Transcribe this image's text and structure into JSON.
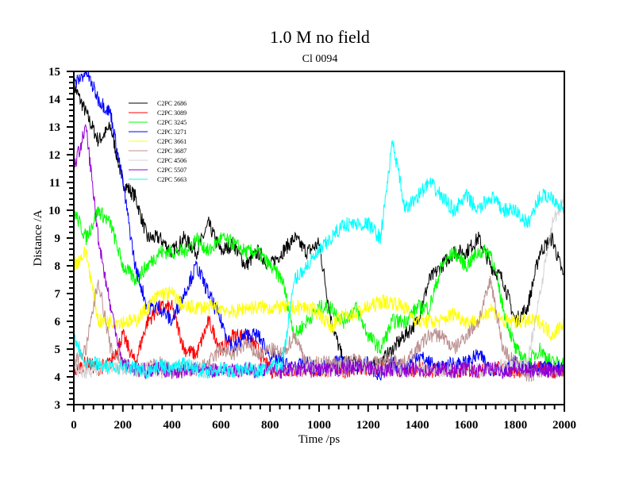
{
  "chart_data": {
    "type": "line",
    "title": "1.0 M no field",
    "subtitle": "Cl 0094",
    "xlabel": "Time /ps",
    "ylabel": "Distance /A",
    "xlim": [
      0,
      2000
    ],
    "ylim": [
      3,
      15
    ],
    "x_major_step": 200,
    "x_minor_step": 40,
    "y_major_step": 1,
    "y_minor_step": 0.2,
    "grid": false,
    "legend_position": "top-left",
    "x": [
      0,
      50,
      100,
      150,
      200,
      250,
      300,
      350,
      400,
      450,
      500,
      550,
      600,
      650,
      700,
      750,
      800,
      850,
      900,
      950,
      1000,
      1050,
      1100,
      1150,
      1200,
      1250,
      1300,
      1350,
      1400,
      1450,
      1500,
      1550,
      1600,
      1650,
      1700,
      1750,
      1800,
      1850,
      1900,
      1950,
      2000
    ],
    "series": [
      {
        "name": "C2PC 2686",
        "color": "#000000",
        "values": [
          14.5,
          13.5,
          12.5,
          13,
          11,
          10.5,
          9,
          9,
          8.5,
          9,
          8.5,
          9.5,
          8.5,
          8.8,
          8,
          8.5,
          8,
          8.5,
          9,
          8.5,
          8.8,
          6,
          4.5,
          4.5,
          4.3,
          4.5,
          5,
          5.5,
          6,
          7.5,
          8,
          8.5,
          8.5,
          9,
          8,
          7.5,
          6,
          6.5,
          8.5,
          9,
          7.5
        ]
      },
      {
        "name": "C2PC 3089",
        "color": "#ff0000",
        "values": [
          4.2,
          4.5,
          4.3,
          4.5,
          5.5,
          4.5,
          6,
          6.5,
          6.5,
          5,
          4.8,
          6,
          5,
          5.5,
          5.5,
          5,
          4.2,
          4.3,
          4.2,
          4.3,
          4.2,
          4.3,
          4.2,
          4.3,
          4.2,
          4.3,
          4.3,
          4.2,
          4.3,
          4.2,
          4.3,
          4.2,
          4.3,
          4.2,
          4.3,
          4.3,
          4.2,
          4.3,
          4.3,
          4.2,
          4.3
        ]
      },
      {
        "name": "C2PC 3245",
        "color": "#00ff00",
        "values": [
          10,
          9,
          10,
          9.5,
          8,
          7.5,
          8,
          8.5,
          8.5,
          8.5,
          9,
          8.5,
          9,
          8.8,
          8.5,
          8.5,
          8,
          7.5,
          5.5,
          6,
          6.5,
          6.5,
          6,
          6.5,
          5.5,
          5,
          6,
          6,
          6.5,
          6.5,
          8,
          8.5,
          8,
          8.5,
          8.5,
          6.5,
          5,
          4.5,
          5,
          4.5,
          4.5
        ]
      },
      {
        "name": "C2PC 3271",
        "color": "#0000ff",
        "values": [
          14.5,
          15,
          14,
          13.5,
          11,
          8,
          6.5,
          6.5,
          6,
          7,
          8,
          7,
          6,
          5,
          5.5,
          5.5,
          4.8,
          4.5,
          4.3,
          4.5,
          4.2,
          4.5,
          4.5,
          4.3,
          4.5,
          4,
          4.5,
          4.3,
          4.8,
          4.5,
          4.3,
          4.5,
          4.5,
          4.8,
          4.3,
          4.3,
          4.5,
          4.3,
          4.3,
          4.3,
          4.3
        ]
      },
      {
        "name": "C2PC 3661",
        "color": "#ffff00",
        "values": [
          8,
          8.5,
          6,
          6,
          6,
          6,
          6.5,
          7,
          7,
          6.5,
          6.5,
          6.5,
          6.5,
          6.3,
          6.5,
          6.5,
          6.5,
          6.5,
          6.5,
          6.5,
          6.3,
          5.8,
          6.2,
          6.3,
          6.5,
          6.7,
          6.7,
          6.5,
          6,
          6,
          6,
          6.3,
          6,
          6,
          6.5,
          6,
          6,
          6,
          6,
          5.5,
          6
        ]
      },
      {
        "name": "C2PC 3687",
        "color": "#bc8f8f",
        "values": [
          4.5,
          5,
          7.5,
          5,
          4.5,
          4.2,
          4.3,
          4.5,
          4.2,
          4.3,
          4.2,
          4.5,
          5,
          4.8,
          5.2,
          4.8,
          5,
          4.8,
          5.5,
          4.5,
          4.5,
          4.5,
          4.5,
          4.6,
          4.5,
          4.5,
          4.6,
          4.5,
          5,
          5.5,
          5.5,
          5,
          5.5,
          6,
          7.5,
          5,
          4.5,
          4,
          4.2,
          4.2,
          4.2
        ]
      },
      {
        "name": "C2PC 4506",
        "color": "#d3d3d3",
        "values": [
          4.3,
          4.2,
          4.3,
          4.4,
          4.3,
          4.2,
          4.3,
          4.2,
          4.3,
          4.4,
          4.3,
          4.2,
          4.3,
          4.2,
          4.3,
          4.3,
          4.2,
          4.3,
          4.2,
          4.3,
          4.3,
          4.2,
          4.3,
          4.4,
          4.3,
          4.2,
          4.3,
          4.2,
          4.3,
          4.3,
          4.2,
          4.3,
          4.3,
          4.2,
          4.3,
          4.4,
          4.3,
          4.5,
          7,
          9.5,
          10.5
        ]
      },
      {
        "name": "C2PC 5507",
        "color": "#9400d3",
        "values": [
          11.5,
          13,
          9,
          6.5,
          4.5,
          4.3,
          4.2,
          4.3,
          4.2,
          4.2,
          4.3,
          4.2,
          4.3,
          4.2,
          4.3,
          4.2,
          4.3,
          4.2,
          4.3,
          4.2,
          4.3,
          4.2,
          4.3,
          4.4,
          4.3,
          4.2,
          4.3,
          4.2,
          4.3,
          4.2,
          4.3,
          4.2,
          4.3,
          4.2,
          4.3,
          4.2,
          4.3,
          4.2,
          4.3,
          4.2,
          4.3
        ]
      },
      {
        "name": "C2PC 5663",
        "color": "#00ffff",
        "values": [
          5.5,
          4.5,
          4.5,
          4.3,
          4.4,
          4.3,
          4.2,
          4.4,
          4.3,
          4.5,
          4.3,
          4.2,
          4.3,
          4.2,
          4.3,
          4.2,
          4.3,
          4.5,
          7.5,
          8,
          8.5,
          9,
          9.5,
          9.5,
          9.5,
          9,
          12.5,
          10,
          10.5,
          11,
          10.5,
          10,
          10.5,
          10,
          10.5,
          10,
          10,
          9.5,
          10.5,
          10.5,
          10
        ]
      }
    ]
  }
}
